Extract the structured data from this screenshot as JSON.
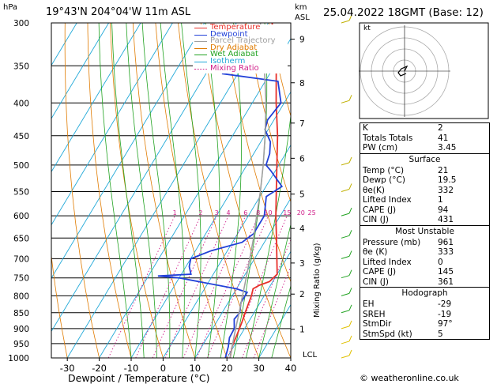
{
  "header": {
    "location": "19°43'N  204°04'W  11m  ASL",
    "hpa_unit": "hPa",
    "km_unit": "km",
    "asl_unit": "ASL",
    "datetime": "25.04.2022  18GMT  (Base: 12)"
  },
  "legend": [
    {
      "label": "Temperature",
      "color": "#e8302a"
    },
    {
      "label": "Dewpoint",
      "color": "#2241d8"
    },
    {
      "label": "Parcel Trajectory",
      "color": "#a0a0a0"
    },
    {
      "label": "Dry Adiabat",
      "color": "#e07b00"
    },
    {
      "label": "Wet Adiabat",
      "color": "#22a322"
    },
    {
      "label": "Isotherm",
      "color": "#20a8d8"
    },
    {
      "label": "Mixing Ratio",
      "color": "#d0208a"
    }
  ],
  "axes": {
    "xlabel": "Dewpoint / Temperature (°C)",
    "mixing_label": "Mixing Ratio (g/kg)",
    "lcl_label": "LCL",
    "footer": "© weatheronline.co.uk",
    "hodo_label": "kt"
  },
  "chart_data": {
    "type": "line",
    "title": "",
    "xlabel": "Dewpoint / Temperature (°C)",
    "ylabel": "hPa",
    "log_pressure_axis": true,
    "xlim": [
      -35,
      40
    ],
    "ylim": [
      1000,
      300
    ],
    "x_ticks": [
      -30,
      -20,
      -10,
      0,
      10,
      20,
      30,
      40
    ],
    "pressure_levels": [
      300,
      350,
      400,
      450,
      500,
      550,
      600,
      650,
      700,
      750,
      800,
      850,
      900,
      950,
      1000
    ],
    "km_ticks": [
      {
        "label": "1",
        "p": 902
      },
      {
        "label": "2",
        "p": 795
      },
      {
        "label": "3",
        "p": 711
      },
      {
        "label": "4",
        "p": 628
      },
      {
        "label": "5",
        "p": 555
      },
      {
        "label": "6",
        "p": 488
      },
      {
        "label": "7",
        "p": 430
      },
      {
        "label": "8",
        "p": 372
      },
      {
        "label": "9",
        "p": 318
      }
    ],
    "mixing_ratio_labels": [
      "1",
      "2",
      "3",
      "4",
      "6",
      "8",
      "10",
      "15",
      "20",
      "25"
    ],
    "mixing_ratio_values": [
      1,
      2,
      3,
      4,
      6,
      8,
      10,
      15,
      20,
      25
    ],
    "series": [
      {
        "name": "Temperature",
        "points": [
          [
            1000,
            21
          ],
          [
            960,
            19.5
          ],
          [
            920,
            18.8
          ],
          [
            880,
            18
          ],
          [
            850,
            17.2
          ],
          [
            800,
            16
          ],
          [
            780,
            15.2
          ],
          [
            770,
            16.5
          ],
          [
            760,
            19
          ],
          [
            740,
            20
          ],
          [
            700,
            17
          ],
          [
            650,
            13
          ],
          [
            600,
            8.6
          ],
          [
            550,
            4.2
          ],
          [
            500,
            -0.6
          ],
          [
            450,
            -5.9
          ],
          [
            400,
            -12.5
          ],
          [
            360,
            -18
          ],
          [
            350,
            -19.7
          ],
          [
            300,
            -28.8
          ]
        ]
      },
      {
        "name": "Dewpoint",
        "points": [
          [
            1000,
            19.5
          ],
          [
            960,
            18.3
          ],
          [
            930,
            17
          ],
          [
            900,
            16.8
          ],
          [
            870,
            15
          ],
          [
            850,
            15.5
          ],
          [
            820,
            14
          ],
          [
            800,
            14
          ],
          [
            790,
            14
          ],
          [
            780,
            10
          ],
          [
            750,
            -10
          ],
          [
            745,
            -17
          ],
          [
            740,
            -7
          ],
          [
            720,
            -9
          ],
          [
            700,
            -10
          ],
          [
            680,
            -5
          ],
          [
            660,
            3
          ],
          [
            640,
            5
          ],
          [
            600,
            5
          ],
          [
            560,
            2
          ],
          [
            540,
            5
          ],
          [
            510,
            -1.5
          ],
          [
            500,
            -4
          ],
          [
            480,
            -5
          ],
          [
            460,
            -7
          ],
          [
            440,
            -11
          ],
          [
            425,
            -12
          ],
          [
            400,
            -11
          ],
          [
            370,
            -16
          ],
          [
            360,
            -35
          ]
        ]
      },
      {
        "name": "Parcel Trajectory",
        "points": [
          [
            1000,
            21
          ],
          [
            960,
            19.5
          ],
          [
            900,
            17.2
          ],
          [
            850,
            15.3
          ],
          [
            800,
            13.2
          ],
          [
            750,
            11
          ],
          [
            700,
            8.5
          ],
          [
            650,
            5.8
          ],
          [
            600,
            2.6
          ],
          [
            550,
            -0.8
          ],
          [
            500,
            -4.9
          ],
          [
            450,
            -9.8
          ],
          [
            400,
            -15.7
          ],
          [
            350,
            -23.2
          ],
          [
            300,
            -32.5
          ]
        ]
      }
    ],
    "wind_barbs_pressures": [
      1000,
      950,
      900,
      850,
      800,
      750,
      700,
      650,
      600,
      550,
      500,
      400,
      300
    ]
  },
  "indices": {
    "top": [
      {
        "label": "K",
        "value": "2"
      },
      {
        "label": "Totals Totals",
        "value": "41"
      },
      {
        "label": "PW (cm)",
        "value": "3.45"
      }
    ],
    "surface_title": "Surface",
    "surface": [
      {
        "label": "Temp (°C)",
        "value": "21"
      },
      {
        "label": "Dewp (°C)",
        "value": "19.5"
      },
      {
        "label": "θe(K)",
        "value": "332"
      },
      {
        "label": "Lifted Index",
        "value": "1"
      },
      {
        "label": "CAPE (J)",
        "value": "94"
      },
      {
        "label": "CIN (J)",
        "value": "431"
      }
    ],
    "unstable_title": "Most Unstable",
    "unstable": [
      {
        "label": "Pressure (mb)",
        "value": "961"
      },
      {
        "label": "θe (K)",
        "value": "333"
      },
      {
        "label": "Lifted Index",
        "value": "0"
      },
      {
        "label": "CAPE (J)",
        "value": "145"
      },
      {
        "label": "CIN (J)",
        "value": "361"
      }
    ],
    "hodo_title": "Hodograph",
    "hodograph": [
      {
        "label": "EH",
        "value": "-29"
      },
      {
        "label": "SREH",
        "value": "-19"
      },
      {
        "label": "StmDir",
        "value": "97°"
      },
      {
        "label": "StmSpd (kt)",
        "value": "5"
      }
    ]
  }
}
